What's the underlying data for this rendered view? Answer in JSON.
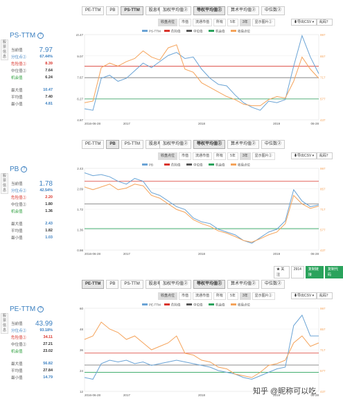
{
  "tabs_top": [
    "PE-TTM",
    "PB",
    "PS-TTM",
    "股息率"
  ],
  "tabs_weight": [
    "加权平均值②",
    "等权平均值②",
    "算术平均值②",
    "中位数②"
  ],
  "subtabs_left": [
    "收盘点位",
    "市值",
    "流通市值",
    "所有",
    "5年",
    "3年",
    "显示图片②"
  ],
  "download_label": "⬇导出CSV ▾",
  "help_label": "乱码？",
  "legend": [
    "当前指标",
    "危险值",
    "中位值",
    "机会值",
    "收盘点位"
  ],
  "follow": {
    "label": "★ 关注",
    "count": "2914",
    "share": "复制链接",
    "embed": "复制代码"
  },
  "watermark": "知乎 @昵称可以吃",
  "panels": [
    {
      "title": "PS-TTM",
      "active_tab": 2,
      "sidebar": "股\n票\n信\n息",
      "stats": [
        {
          "k": "当前值",
          "v": "7.97"
        },
        {
          "k": "分位点②",
          "v": "67.44%"
        },
        {
          "k": "危险值②",
          "v": "8.39"
        },
        {
          "k": "中位值②",
          "v": "7.64"
        },
        {
          "k": "机会值",
          "v": "6.24"
        },
        {
          "k": "最大值",
          "v": "10.47"
        },
        {
          "k": "平均值",
          "v": "7.40"
        },
        {
          "k": "最小值",
          "v": "4.81"
        }
      ]
    },
    {
      "title": "PB",
      "active_tab": 1,
      "sidebar": "股\n票\n信\n息",
      "stats": [
        {
          "k": "当前值",
          "v": "1.78"
        },
        {
          "k": "分位点②",
          "v": "42.54%"
        },
        {
          "k": "危险值②",
          "v": "2.20"
        },
        {
          "k": "中位值②",
          "v": "1.80"
        },
        {
          "k": "机会值",
          "v": "1.36"
        },
        {
          "k": "最大值",
          "v": "2.43"
        },
        {
          "k": "平均值",
          "v": "1.82"
        },
        {
          "k": "最小值",
          "v": "1.03"
        }
      ]
    },
    {
      "title": "PE-TTM",
      "active_tab": 0,
      "sidebar": "股\n票\n信\n息",
      "stats": [
        {
          "k": "当前值",
          "v": "43.99"
        },
        {
          "k": "分位点②",
          "v": "93.18%"
        },
        {
          "k": "危险值②",
          "v": "34.11"
        },
        {
          "k": "中位值②",
          "v": "27.21"
        },
        {
          "k": "机会值",
          "v": "23.02"
        },
        {
          "k": "最大值",
          "v": "56.82"
        },
        {
          "k": "平均值",
          "v": "27.84"
        },
        {
          "k": "最小值",
          "v": "14.79"
        }
      ]
    }
  ],
  "chart_data": [
    {
      "type": "line",
      "title": "",
      "x_start": "2016-06-28",
      "x_end": "06-28",
      "x_ticks": [
        "2016-06-28",
        "2017",
        "2018",
        "2019",
        "06-28"
      ],
      "y_left_ticks": [
        "10.47",
        "9.07",
        "7.67",
        "6.27",
        "4.87"
      ],
      "y_right_ticks": [
        "997",
        "857",
        "717",
        "577",
        "437"
      ],
      "ylim": [
        4.87,
        10.47
      ],
      "danger": 8.39,
      "median": 7.64,
      "opportunity": 6.24,
      "series": [
        {
          "name": "PS-TTM",
          "color": "#6aa3d5",
          "values": [
            5.6,
            5.5,
            7.6,
            7.8,
            7.4,
            7.6,
            8.1,
            8.6,
            8.3,
            8.7,
            9.1,
            9.3,
            8.9,
            9.0,
            8.2,
            7.6,
            7.2,
            7.1,
            6.5,
            6.0,
            5.7,
            5.5,
            6.1,
            6.0,
            6.2,
            8.4,
            10.4,
            9.0,
            7.9
          ]
        },
        {
          "name": "收盘点位",
          "color": "#f5a35a",
          "values": [
            6.0,
            6.1,
            8.3,
            8.6,
            8.4,
            8.7,
            8.9,
            9.4,
            9.0,
            8.8,
            9.6,
            9.8,
            8.2,
            8.0,
            7.3,
            7.0,
            6.7,
            6.4,
            6.2,
            5.9,
            5.8,
            5.8,
            6.2,
            6.4,
            6.3,
            7.4,
            9.0,
            8.2,
            7.6
          ]
        }
      ]
    },
    {
      "type": "line",
      "title": "",
      "x_start": "2016-06-28",
      "x_end": "06-28",
      "x_ticks": [
        "2016-06-28",
        "2017",
        "2018",
        "2019",
        "06-28"
      ],
      "y_left_ticks": [
        "2.43",
        "2.09",
        "1.72",
        "1.36",
        "0.98"
      ],
      "y_right_ticks": [
        "997",
        "857",
        "717",
        "577",
        "437"
      ],
      "ylim": [
        0.98,
        2.43
      ],
      "danger": 2.2,
      "median": 1.8,
      "opportunity": 1.36,
      "series": [
        {
          "name": "PB",
          "color": "#6aa3d5",
          "values": [
            2.35,
            2.3,
            2.32,
            2.28,
            2.2,
            2.15,
            2.25,
            2.2,
            2.0,
            1.95,
            1.85,
            1.75,
            1.7,
            1.55,
            1.48,
            1.45,
            1.35,
            1.3,
            1.25,
            1.15,
            1.1,
            1.2,
            1.3,
            1.35,
            1.5,
            2.05,
            1.85,
            1.75,
            1.78
          ]
        },
        {
          "name": "收盘点位",
          "color": "#f5a35a",
          "values": [
            2.1,
            2.05,
            2.1,
            2.15,
            2.05,
            2.08,
            2.15,
            2.12,
            1.95,
            1.9,
            1.8,
            1.7,
            1.65,
            1.52,
            1.45,
            1.4,
            1.32,
            1.28,
            1.22,
            1.15,
            1.12,
            1.18,
            1.25,
            1.3,
            1.45,
            1.95,
            1.8,
            1.72,
            1.76
          ]
        }
      ]
    },
    {
      "type": "line",
      "title": "",
      "x_start": "2016-06-28",
      "x_end": "06-28",
      "x_ticks": [
        "2016-06-28",
        "2017",
        "2018",
        "2019",
        "06-28"
      ],
      "y_left_ticks": [
        "60",
        "48",
        "36",
        "24",
        "12"
      ],
      "y_right_ticks": [
        "997",
        "857",
        "717",
        "577",
        "437"
      ],
      "ylim": [
        12,
        60
      ],
      "danger": 34.11,
      "median": 27.21,
      "opportunity": 23.02,
      "series": [
        {
          "name": "PE-TTM",
          "color": "#6aa3d5",
          "values": [
            20,
            19,
            28,
            30,
            29,
            30,
            28,
            29,
            27,
            28,
            29,
            30,
            29,
            28,
            27,
            26,
            24,
            23,
            22,
            20,
            19,
            21,
            23,
            25,
            26,
            50,
            56,
            44,
            44
          ]
        },
        {
          "name": "收盘点位",
          "color": "#f5a35a",
          "values": [
            42,
            44,
            52,
            48,
            46,
            42,
            44,
            40,
            36,
            38,
            40,
            44,
            34,
            33,
            30,
            29,
            26,
            25,
            22,
            21,
            20,
            23,
            27,
            28,
            30,
            40,
            44,
            38,
            40
          ]
        }
      ]
    }
  ]
}
